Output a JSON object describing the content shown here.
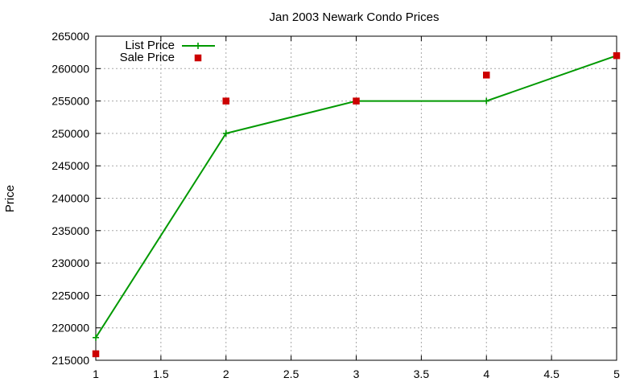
{
  "chart_data": {
    "type": "line",
    "title": "Jan 2003 Newark Condo Prices",
    "xlabel": "",
    "ylabel": "Price",
    "xlim": [
      1,
      5
    ],
    "ylim": [
      215000,
      265000
    ],
    "xticks": [
      "1",
      "1.5",
      "2",
      "2.5",
      "3",
      "3.5",
      "4",
      "4.5",
      "5"
    ],
    "yticks": [
      "215000",
      "220000",
      "225000",
      "230000",
      "235000",
      "240000",
      "245000",
      "250000",
      "255000",
      "260000",
      "265000"
    ],
    "grid": true,
    "legend_position": "top-left",
    "series": [
      {
        "name": "List Price",
        "type": "line",
        "marker": "plus",
        "color": "#009900",
        "x": [
          1,
          2,
          3,
          4,
          5
        ],
        "y": [
          218500,
          250000,
          255000,
          255000,
          262000
        ]
      },
      {
        "name": "Sale Price",
        "type": "scatter",
        "marker": "square",
        "color": "#cc0000",
        "x": [
          1,
          2,
          3,
          4,
          5
        ],
        "y": [
          216000,
          255000,
          255000,
          259000,
          262000
        ]
      }
    ]
  }
}
